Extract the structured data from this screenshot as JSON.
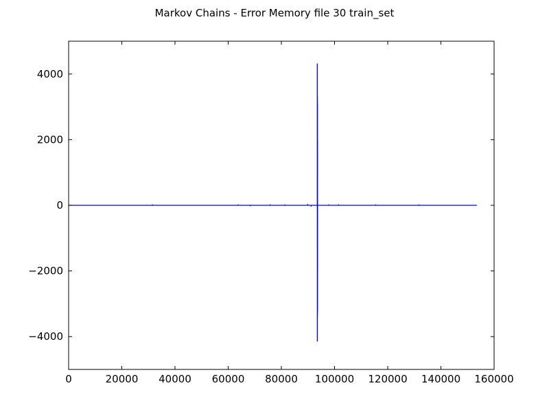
{
  "chart_data": {
    "type": "line",
    "title": "Markov Chains - Error Memory file 30 train_set",
    "xlabel": "",
    "ylabel": "",
    "xlim": [
      0,
      160000
    ],
    "ylim": [
      -5000,
      5000
    ],
    "xticks": [
      0,
      20000,
      40000,
      60000,
      80000,
      100000,
      120000,
      140000,
      160000
    ],
    "xtick_labels": [
      "0",
      "20000",
      "40000",
      "60000",
      "80000",
      "100000",
      "120000",
      "140000",
      "160000"
    ],
    "yticks": [
      -4000,
      -2000,
      0,
      2000,
      4000
    ],
    "ytick_labels": [
      "−4000",
      "−2000",
      "0",
      "2000",
      "4000"
    ],
    "grid": false,
    "line_color": "#0000ff",
    "series": [
      {
        "x": [
          0,
          31500,
          31500,
          31500,
          63800,
          63800,
          63800,
          68300,
          68300,
          68300,
          75800,
          75800,
          75800,
          81300,
          81300,
          81300,
          89900,
          89900,
          89900,
          91200,
          91200,
          91200,
          93500,
          93500,
          93520,
          93520,
          93540,
          93540,
          93560,
          93560,
          93580,
          93580,
          93600,
          93600,
          93620,
          93620,
          97800,
          97800,
          97800,
          101500,
          101500,
          101500,
          115500,
          115500,
          115500,
          131700,
          131700,
          131700,
          153500
        ],
        "y": [
          0,
          0,
          30,
          0,
          0,
          30,
          0,
          0,
          -30,
          0,
          0,
          30,
          0,
          0,
          30,
          0,
          0,
          40,
          0,
          0,
          -40,
          0,
          0,
          4320,
          -4150,
          3350,
          -3350,
          3300,
          -3380,
          3200,
          -3300,
          3100,
          -3200,
          2000,
          -2000,
          0,
          0,
          30,
          0,
          0,
          30,
          0,
          0,
          30,
          0,
          0,
          30,
          0,
          0
        ]
      }
    ]
  }
}
